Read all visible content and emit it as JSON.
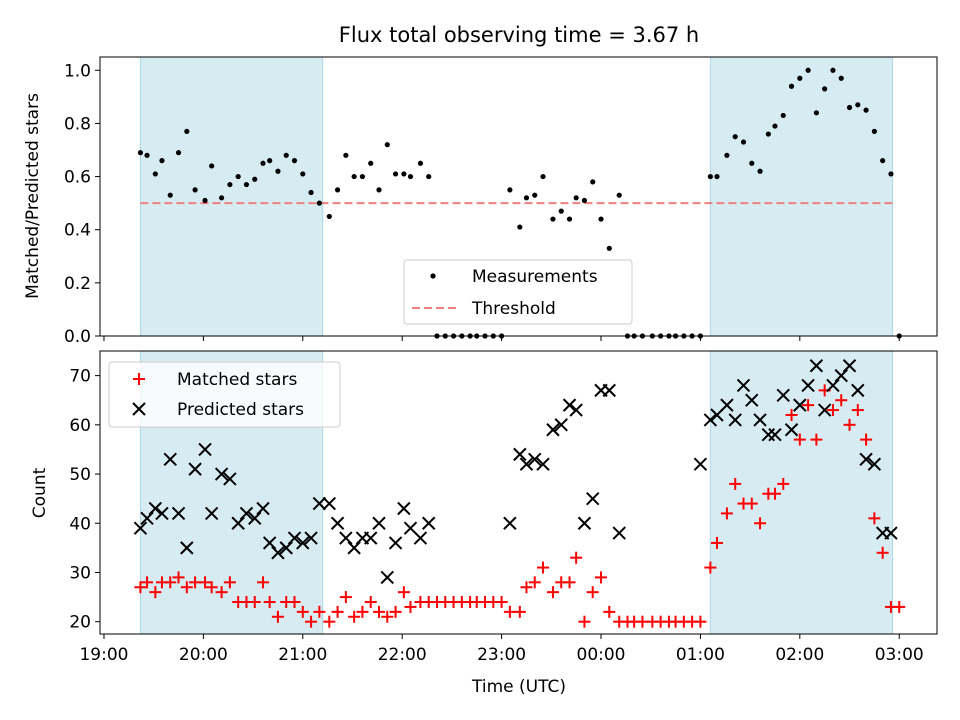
{
  "chart_data": {
    "type": "scatter",
    "title": "Flux total observing time = 3.67 h",
    "xlabel": "Time (UTC)",
    "x_tick_labels": [
      "19:00",
      "20:00",
      "21:00",
      "22:00",
      "23:00",
      "00:00",
      "01:00",
      "02:00",
      "03:00"
    ],
    "shaded_intervals": [
      [
        "19:22",
        "21:12"
      ],
      [
        "01:06",
        "02:56"
      ]
    ],
    "shade_color": "#add8e6",
    "top_panel": {
      "ylabel": "Matched/Predicted stars",
      "ylim": [
        0,
        1.05
      ],
      "y_tick_labels": [
        "0.0",
        "0.2",
        "0.4",
        "0.6",
        "0.8",
        "1.0"
      ],
      "legend_position": "lower-center",
      "threshold": {
        "name": "Threshold",
        "value": 0.5,
        "color": "#f08080",
        "range": [
          "19:22",
          "02:58"
        ]
      },
      "series": [
        {
          "name": "Measurements",
          "marker": "dot",
          "color": "#000000",
          "x": [
            "19:22",
            "19:26",
            "19:31",
            "19:35",
            "19:40",
            "19:45",
            "19:50",
            "19:55",
            "20:01",
            "20:05",
            "20:11",
            "20:16",
            "20:21",
            "20:26",
            "20:31",
            "20:36",
            "20:40",
            "20:45",
            "20:50",
            "20:55",
            "21:00",
            "21:05",
            "21:10",
            "21:16",
            "21:21",
            "21:26",
            "21:31",
            "21:36",
            "21:41",
            "21:46",
            "21:51",
            "21:56",
            "22:01",
            "22:05",
            "22:11",
            "22:16",
            "22:21",
            "22:26",
            "22:31",
            "22:36",
            "22:41",
            "22:45",
            "22:50",
            "22:55",
            "23:00",
            "23:05",
            "23:11",
            "23:15",
            "23:20",
            "23:25",
            "23:31",
            "23:36",
            "23:41",
            "23:45",
            "23:50",
            "23:55",
            "00:00",
            "00:05",
            "00:11",
            "00:16",
            "00:20",
            "00:25",
            "00:31",
            "00:36",
            "00:41",
            "00:45",
            "00:50",
            "00:55",
            "01:00",
            "01:06",
            "01:10",
            "01:16",
            "01:21",
            "01:26",
            "01:31",
            "01:36",
            "01:41",
            "01:45",
            "01:50",
            "01:55",
            "02:00",
            "02:05",
            "02:10",
            "02:15",
            "02:20",
            "02:25",
            "02:30",
            "02:35",
            "02:40",
            "02:45",
            "02:50",
            "02:55",
            "03:00"
          ],
          "y": [
            0.69,
            0.68,
            0.61,
            0.66,
            0.53,
            0.69,
            0.77,
            0.55,
            0.51,
            0.64,
            0.52,
            0.57,
            0.6,
            0.57,
            0.59,
            0.65,
            0.66,
            0.62,
            0.68,
            0.66,
            0.61,
            0.54,
            0.5,
            0.45,
            0.55,
            0.68,
            0.6,
            0.6,
            0.65,
            0.55,
            0.72,
            0.61,
            0.61,
            0.6,
            0.65,
            0.6,
            0,
            0,
            0,
            0,
            0,
            0,
            0,
            0,
            0,
            0.55,
            0.41,
            0.52,
            0.53,
            0.6,
            0.44,
            0.47,
            0.44,
            0.52,
            0.51,
            0.58,
            0.44,
            0.33,
            0.53,
            0,
            0,
            0,
            0,
            0,
            0,
            0,
            0,
            0,
            0,
            0.6,
            0.6,
            0.68,
            0.75,
            0.73,
            0.65,
            0.62,
            0.76,
            0.79,
            0.83,
            0.94,
            0.97,
            1.0,
            0.84,
            0.93,
            1.0,
            0.97,
            0.86,
            0.87,
            0.85,
            0.77,
            0.66,
            0.61,
            0.0
          ]
        }
      ]
    },
    "bottom_panel": {
      "ylabel": "Count",
      "ylim": [
        17.5,
        75
      ],
      "y_tick_labels": [
        "20",
        "30",
        "40",
        "50",
        "60",
        "70"
      ],
      "legend_position": "upper-left",
      "series": [
        {
          "name": "Matched stars",
          "marker": "plus",
          "color": "#ff0000",
          "x": [
            "19:22",
            "19:26",
            "19:31",
            "19:35",
            "19:40",
            "19:45",
            "19:50",
            "19:55",
            "20:01",
            "20:05",
            "20:11",
            "20:16",
            "20:21",
            "20:26",
            "20:31",
            "20:36",
            "20:40",
            "20:45",
            "20:50",
            "20:55",
            "21:00",
            "21:05",
            "21:10",
            "21:16",
            "21:21",
            "21:26",
            "21:31",
            "21:36",
            "21:41",
            "21:46",
            "21:51",
            "21:56",
            "22:01",
            "22:05",
            "22:11",
            "22:16",
            "22:21",
            "22:26",
            "22:31",
            "22:36",
            "22:41",
            "22:45",
            "22:50",
            "22:55",
            "23:00",
            "23:05",
            "23:11",
            "23:15",
            "23:20",
            "23:25",
            "23:31",
            "23:36",
            "23:41",
            "23:45",
            "23:50",
            "23:55",
            "00:00",
            "00:05",
            "00:11",
            "00:16",
            "00:20",
            "00:25",
            "00:31",
            "00:36",
            "00:41",
            "00:45",
            "00:50",
            "00:55",
            "01:00",
            "01:06",
            "01:10",
            "01:16",
            "01:21",
            "01:26",
            "01:31",
            "01:36",
            "01:41",
            "01:45",
            "01:50",
            "01:55",
            "02:00",
            "02:05",
            "02:10",
            "02:15",
            "02:20",
            "02:25",
            "02:30",
            "02:35",
            "02:40",
            "02:45",
            "02:50",
            "02:55",
            "03:00"
          ],
          "y": [
            27,
            28,
            26,
            28,
            28,
            29,
            27,
            28,
            28,
            27,
            26,
            28,
            24,
            24,
            24,
            28,
            24,
            21,
            24,
            24,
            22,
            20,
            22,
            20,
            22,
            25,
            21,
            22,
            24,
            22,
            21,
            22,
            26,
            23,
            24,
            24,
            24,
            24,
            24,
            24,
            24,
            24,
            24,
            24,
            24,
            22,
            22,
            27,
            28,
            31,
            26,
            28,
            28,
            33,
            20,
            26,
            29,
            22,
            20,
            20,
            20,
            20,
            20,
            20,
            20,
            20,
            20,
            20,
            20,
            31,
            36,
            42,
            48,
            44,
            44,
            40,
            46,
            46,
            48,
            62,
            57,
            64,
            57,
            67,
            63,
            65,
            60,
            63,
            57,
            41,
            34,
            23,
            23
          ]
        },
        {
          "name": "Predicted stars",
          "marker": "cross",
          "color": "#000000",
          "x": [
            "19:22",
            "19:26",
            "19:31",
            "19:35",
            "19:40",
            "19:45",
            "19:50",
            "19:55",
            "20:01",
            "20:05",
            "20:11",
            "20:16",
            "20:21",
            "20:26",
            "20:31",
            "20:36",
            "20:40",
            "20:45",
            "20:50",
            "20:55",
            "21:00",
            "21:05",
            "21:10",
            "21:16",
            "21:21",
            "21:26",
            "21:31",
            "21:36",
            "21:41",
            "21:46",
            "21:51",
            "21:56",
            "22:01",
            "22:05",
            "22:11",
            "22:16",
            "23:05",
            "23:11",
            "23:15",
            "23:20",
            "23:25",
            "23:31",
            "23:36",
            "23:41",
            "23:45",
            "23:50",
            "23:55",
            "00:00",
            "00:05",
            "00:11",
            "01:00",
            "01:06",
            "01:10",
            "01:16",
            "01:21",
            "01:26",
            "01:31",
            "01:36",
            "01:41",
            "01:45",
            "01:50",
            "01:55",
            "02:00",
            "02:05",
            "02:10",
            "02:15",
            "02:20",
            "02:25",
            "02:30",
            "02:35",
            "02:40",
            "02:45",
            "02:50",
            "02:55"
          ],
          "y": [
            39,
            41,
            43,
            42,
            53,
            42,
            35,
            51,
            55,
            42,
            50,
            49,
            40,
            42,
            41,
            43,
            36,
            34,
            35,
            37,
            36,
            37,
            44,
            44,
            40,
            37,
            35,
            37,
            37,
            40,
            29,
            36,
            43,
            39,
            37,
            40,
            40,
            54,
            52,
            53,
            52,
            59,
            60,
            64,
            63,
            40,
            45,
            67,
            67,
            38,
            52,
            61,
            62,
            64,
            61,
            68,
            65,
            61,
            58,
            58,
            66,
            59,
            64,
            68,
            72,
            63,
            68,
            70,
            72,
            67,
            53,
            52,
            38,
            38
          ]
        }
      ]
    }
  }
}
